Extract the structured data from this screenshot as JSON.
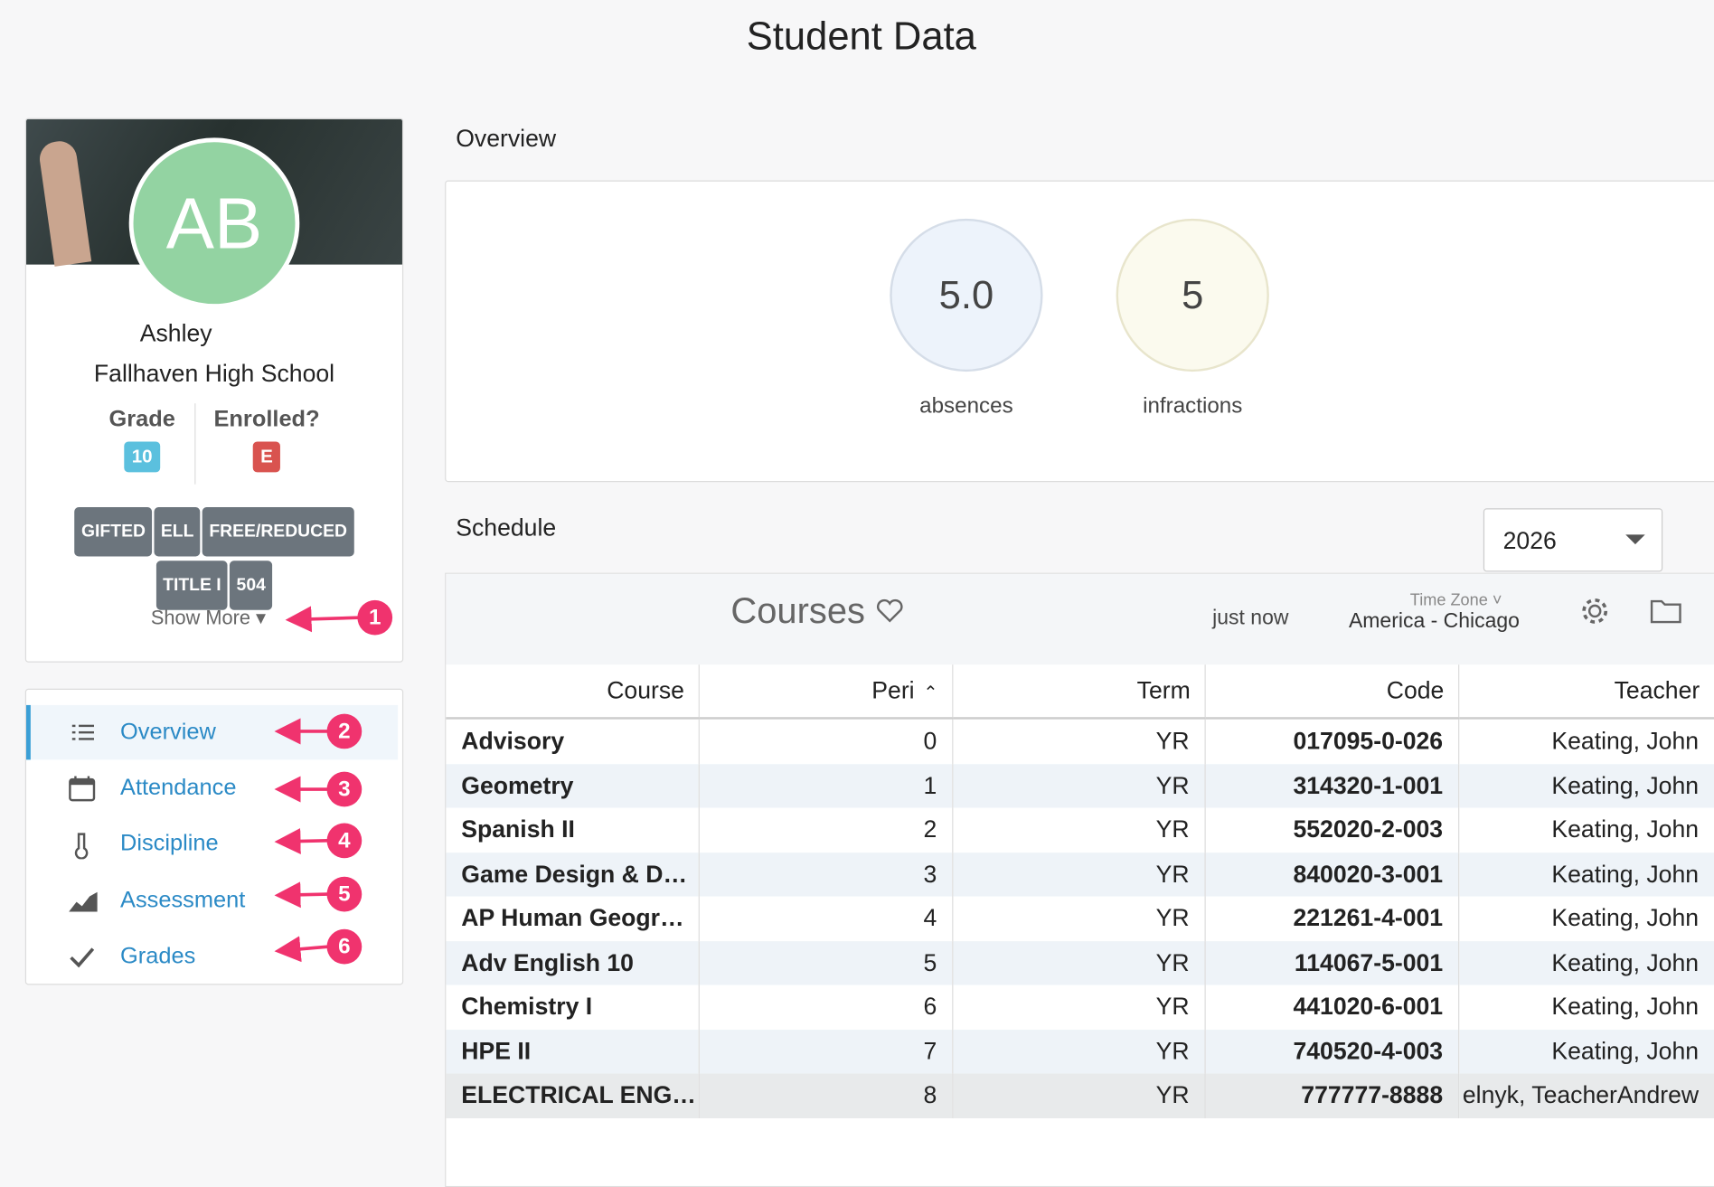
{
  "header": {
    "title": "Student Data"
  },
  "profile": {
    "initials": "AB",
    "name": "Ashley",
    "school": "Fallhaven High School",
    "grade_label": "Grade",
    "grade": "10",
    "enrolled_label": "Enrolled?",
    "enrolled": "E",
    "tags": [
      "GIFTED",
      "ELL",
      "FREE/REDUCED",
      "TITLE I",
      "504"
    ],
    "show_more": "Show More"
  },
  "nav": {
    "items": [
      "Overview",
      "Attendance",
      "Discipline",
      "Assessment",
      "Grades"
    ]
  },
  "annotations": [
    "1",
    "2",
    "3",
    "4",
    "5",
    "6"
  ],
  "overview": {
    "heading": "Overview",
    "stats": [
      {
        "value": "5.0",
        "label": "absences"
      },
      {
        "value": "5",
        "label": "infractions"
      }
    ]
  },
  "schedule": {
    "heading": "Schedule",
    "year": "2026",
    "courses_title": "Courses",
    "updated": "just now",
    "timezone_label": "Time Zone",
    "timezone": "America - Chicago",
    "table": {
      "columns": [
        "Course",
        "Peri",
        "Term",
        "Code",
        "Teacher"
      ],
      "rows": [
        [
          "Advisory",
          "0",
          "YR",
          "017095-0-026",
          "Keating, John"
        ],
        [
          "Geometry",
          "1",
          "YR",
          "314320-1-001",
          "Keating, John"
        ],
        [
          "Spanish II",
          "2",
          "YR",
          "552020-2-003",
          "Keating, John"
        ],
        [
          "Game Design & D…",
          "3",
          "YR",
          "840020-3-001",
          "Keating, John"
        ],
        [
          "AP Human Geogr…",
          "4",
          "YR",
          "221261-4-001",
          "Keating, John"
        ],
        [
          "Adv English 10",
          "5",
          "YR",
          "114067-5-001",
          "Keating, John"
        ],
        [
          "Chemistry I",
          "6",
          "YR",
          "441020-6-001",
          "Keating, John"
        ],
        [
          "HPE II",
          "7",
          "YR",
          "740520-4-003",
          "Keating, John"
        ],
        [
          "ELECTRICAL ENG…",
          "8",
          "YR",
          "777777-8888",
          "elnyk, TeacherAndrew"
        ]
      ]
    }
  }
}
